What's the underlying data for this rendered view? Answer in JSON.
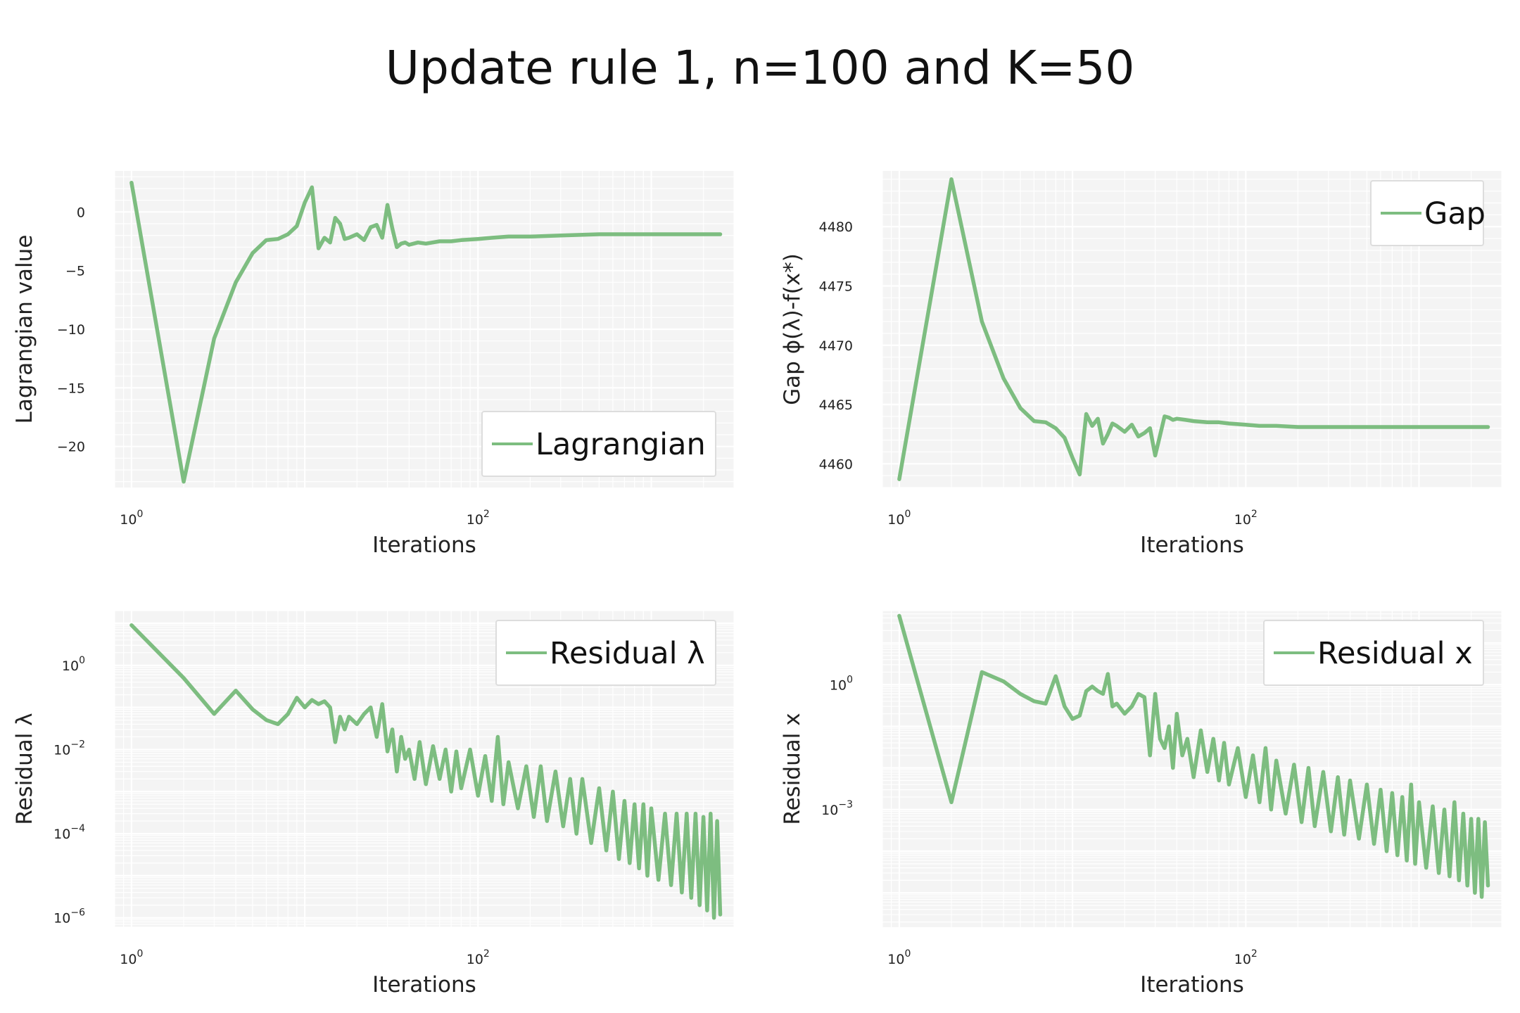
{
  "figure": {
    "title": "Update rule 1, n=100 and K=50"
  },
  "colors": {
    "line": "#7dbd80",
    "panel_bg": "#f4f4f4",
    "grid": "#ffffff",
    "legend_border": "#dddddd"
  },
  "chart_data": [
    {
      "type": "line",
      "xscale": "log",
      "yscale": "linear",
      "xlabel": "Iterations",
      "ylabel": "Lagrangian value",
      "xlim": [
        0.8,
        3000
      ],
      "ylim": [
        -23.5,
        3.5
      ],
      "grid": true,
      "legend": "bottom-right",
      "xticks": [
        {
          "v": 1,
          "base": "10",
          "exp": "0"
        },
        {
          "v": 100,
          "base": "10",
          "exp": "2"
        }
      ],
      "yticks": [
        {
          "v": 0,
          "label": "0"
        },
        {
          "v": -5,
          "label": "−5"
        },
        {
          "v": -10,
          "label": "−10"
        },
        {
          "v": -15,
          "label": "−15"
        },
        {
          "v": -20,
          "label": "−20"
        }
      ],
      "series": [
        {
          "name": "Lagrangian",
          "x": [
            1,
            2,
            3,
            4,
            5,
            6,
            7,
            8,
            9,
            10,
            11,
            12,
            13,
            14,
            15,
            16,
            17,
            18,
            20,
            22,
            24,
            26,
            28,
            30,
            32,
            34,
            36,
            38,
            40,
            45,
            50,
            60,
            70,
            80,
            100,
            120,
            150,
            200,
            300,
            500,
            1000,
            2000,
            2500
          ],
          "y": [
            2.5,
            -23,
            -10.8,
            -6,
            -3.5,
            -2.4,
            -2.3,
            -1.9,
            -1.2,
            0.8,
            2.1,
            -3.1,
            -2.2,
            -2.6,
            -0.5,
            -1.0,
            -2.3,
            -2.2,
            -1.9,
            -2.4,
            -1.3,
            -1.1,
            -2.2,
            0.6,
            -1.4,
            -3.0,
            -2.7,
            -2.6,
            -2.8,
            -2.6,
            -2.7,
            -2.5,
            -2.5,
            -2.4,
            -2.3,
            -2.2,
            -2.1,
            -2.1,
            -2.0,
            -1.9,
            -1.9,
            -1.9,
            -1.9
          ]
        }
      ]
    },
    {
      "type": "line",
      "xscale": "log",
      "yscale": "linear",
      "xlabel": "Iterations",
      "ylabel": "Gap ϕ(λ)-f(x*)",
      "xlim": [
        0.8,
        3000
      ],
      "ylim": [
        4458,
        4484.7
      ],
      "grid": true,
      "legend": "top-right",
      "xticks": [
        {
          "v": 1,
          "base": "10",
          "exp": "0"
        },
        {
          "v": 100,
          "base": "10",
          "exp": "2"
        }
      ],
      "yticks": [
        {
          "v": 4460,
          "label": "4460"
        },
        {
          "v": 4465,
          "label": "4465"
        },
        {
          "v": 4470,
          "label": "4470"
        },
        {
          "v": 4475,
          "label": "4475"
        },
        {
          "v": 4480,
          "label": "4480"
        }
      ],
      "series": [
        {
          "name": "Gap",
          "x": [
            1,
            2,
            3,
            4,
            5,
            6,
            7,
            8,
            9,
            10,
            11,
            12,
            13,
            14,
            15,
            16,
            17,
            18,
            20,
            22,
            24,
            26,
            28,
            30,
            32,
            34,
            36,
            38,
            40,
            45,
            50,
            60,
            70,
            80,
            100,
            120,
            150,
            200,
            300,
            500,
            1000,
            2000,
            2500
          ],
          "y": [
            4458.7,
            4484,
            4472,
            4467.2,
            4464.7,
            4463.6,
            4463.5,
            4463.0,
            4462.2,
            4460.5,
            4459.1,
            4464.2,
            4463.2,
            4463.8,
            4461.7,
            4462.5,
            4463.4,
            4463.2,
            4462.7,
            4463.3,
            4462.3,
            4462.6,
            4463.0,
            4460.7,
            4462.4,
            4464.0,
            4463.9,
            4463.7,
            4463.8,
            4463.7,
            4463.6,
            4463.5,
            4463.5,
            4463.4,
            4463.3,
            4463.2,
            4463.2,
            4463.1,
            4463.1,
            4463.1,
            4463.1,
            4463.1,
            4463.1
          ]
        }
      ]
    },
    {
      "type": "line",
      "xscale": "log",
      "yscale": "log",
      "xlabel": "Iterations",
      "ylabel": "Residual λ",
      "xlim": [
        0.8,
        3000
      ],
      "ylim": [
        6e-07,
        20
      ],
      "grid": true,
      "legend": "top-right",
      "xticks": [
        {
          "v": 1,
          "base": "10",
          "exp": "0"
        },
        {
          "v": 100,
          "base": "10",
          "exp": "2"
        }
      ],
      "yticks": [
        {
          "v": 1,
          "base": "10",
          "exp": "0"
        },
        {
          "v": 0.01,
          "base": "10",
          "exp": "−2"
        },
        {
          "v": 0.0001,
          "base": "10",
          "exp": "−4"
        },
        {
          "v": 1e-06,
          "base": "10",
          "exp": "−6"
        }
      ],
      "series": [
        {
          "name": "Residual λ",
          "x": [
            1,
            2,
            3,
            4,
            5,
            6,
            7,
            8,
            9,
            10,
            11,
            12,
            13,
            14,
            15,
            16,
            17,
            18,
            20,
            22,
            24,
            26,
            28,
            30,
            32,
            34,
            36,
            38,
            40,
            43,
            46,
            50,
            55,
            60,
            65,
            70,
            75,
            80,
            90,
            100,
            110,
            120,
            130,
            140,
            150,
            170,
            190,
            210,
            230,
            250,
            280,
            310,
            340,
            370,
            400,
            450,
            500,
            550,
            600,
            650,
            700,
            750,
            800,
            850,
            900,
            950,
            1000,
            1100,
            1200,
            1300,
            1400,
            1500,
            1600,
            1700,
            1800,
            1900,
            2000,
            2100,
            2200,
            2300,
            2400,
            2500
          ],
          "y": [
            9,
            0.5,
            0.07,
            0.25,
            0.09,
            0.05,
            0.04,
            0.07,
            0.17,
            0.1,
            0.15,
            0.12,
            0.14,
            0.1,
            0.015,
            0.06,
            0.03,
            0.06,
            0.04,
            0.07,
            0.1,
            0.02,
            0.12,
            0.009,
            0.03,
            0.003,
            0.02,
            0.006,
            0.01,
            0.002,
            0.015,
            0.0015,
            0.012,
            0.002,
            0.01,
            0.001,
            0.009,
            0.0012,
            0.01,
            0.0008,
            0.007,
            0.0006,
            0.02,
            0.0005,
            0.005,
            0.0004,
            0.004,
            0.00025,
            0.004,
            0.0002,
            0.003,
            0.00015,
            0.002,
            0.0001,
            0.002,
            6e-05,
            0.0012,
            4e-05,
            0.001,
            2.5e-05,
            0.0006,
            2e-05,
            0.0005,
            1.5e-05,
            0.0005,
            1e-05,
            0.0004,
            8e-06,
            0.0003,
            6e-06,
            0.0003,
            4e-06,
            0.0003,
            3e-06,
            0.0003,
            2e-06,
            0.00025,
            1.5e-06,
            0.0003,
            1e-06,
            0.0002,
            1.2e-06
          ]
        }
      ]
    },
    {
      "type": "line",
      "xscale": "log",
      "yscale": "log",
      "xlabel": "Iterations",
      "ylabel": "Residual x",
      "xlim": [
        0.8,
        3000
      ],
      "ylim": [
        1.5e-06,
        60
      ],
      "grid": true,
      "legend": "top-right",
      "xticks": [
        {
          "v": 1,
          "base": "10",
          "exp": "0"
        },
        {
          "v": 100,
          "base": "10",
          "exp": "2"
        }
      ],
      "yticks": [
        {
          "v": 1,
          "base": "10",
          "exp": "0"
        },
        {
          "v": 0.001,
          "base": "10",
          "exp": "−3"
        }
      ],
      "series": [
        {
          "name": "Residual x",
          "x": [
            1,
            2,
            3,
            4,
            5,
            6,
            7,
            8,
            9,
            10,
            11,
            12,
            13,
            14,
            15,
            16,
            17,
            18,
            20,
            22,
            24,
            26,
            28,
            30,
            32,
            34,
            36,
            38,
            40,
            43,
            46,
            50,
            55,
            60,
            65,
            70,
            75,
            80,
            90,
            100,
            110,
            120,
            130,
            140,
            150,
            170,
            190,
            210,
            230,
            250,
            280,
            310,
            340,
            370,
            400,
            450,
            500,
            550,
            600,
            650,
            700,
            750,
            800,
            850,
            900,
            950,
            1000,
            1100,
            1200,
            1300,
            1400,
            1500,
            1600,
            1700,
            1800,
            1900,
            2000,
            2100,
            2200,
            2300,
            2400,
            2500
          ],
          "y": [
            45,
            0.0015,
            2,
            1.2,
            0.6,
            0.4,
            0.35,
            1.6,
            0.3,
            0.15,
            0.18,
            0.7,
            0.9,
            0.7,
            0.6,
            1.8,
            0.3,
            0.35,
            0.2,
            0.3,
            0.6,
            0.5,
            0.02,
            0.6,
            0.05,
            0.03,
            0.1,
            0.01,
            0.2,
            0.02,
            0.05,
            0.006,
            0.08,
            0.008,
            0.05,
            0.005,
            0.04,
            0.004,
            0.03,
            0.002,
            0.02,
            0.0015,
            0.03,
            0.001,
            0.015,
            0.0008,
            0.012,
            0.0005,
            0.01,
            0.0004,
            0.008,
            0.0003,
            0.006,
            0.00025,
            0.005,
            0.0002,
            0.004,
            0.00015,
            0.003,
            0.0001,
            0.0025,
            8e-05,
            0.002,
            6e-05,
            0.004,
            5e-05,
            0.0015,
            4e-05,
            0.0012,
            3e-05,
            0.001,
            2.5e-05,
            0.0015,
            2e-05,
            0.0008,
            1.5e-05,
            0.0006,
            1e-05,
            0.0006,
            8e-06,
            0.0005,
            1.5e-05
          ]
        }
      ]
    }
  ]
}
